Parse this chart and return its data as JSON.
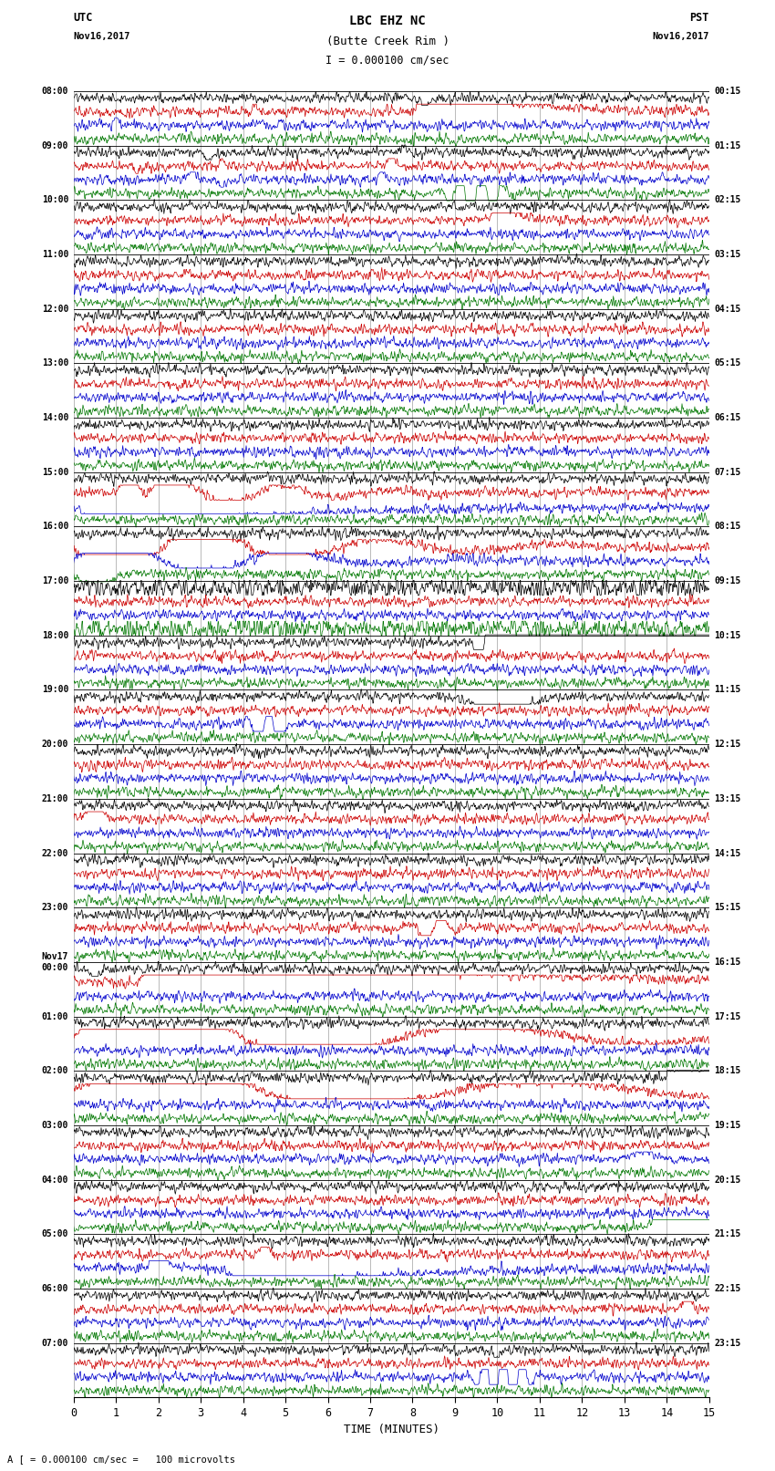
{
  "title_line1": "LBC EHZ NC",
  "title_line2": "(Butte Creek Rim )",
  "scale_label": "I = 0.000100 cm/sec",
  "bottom_label": "A [ = 0.000100 cm/sec =   100 microvolts",
  "xlabel": "TIME (MINUTES)",
  "background_color": "#ffffff",
  "trace_colors": [
    "#000000",
    "#cc0000",
    "#0000cc",
    "#007700"
  ],
  "grid_color": "#888888",
  "fig_width": 8.5,
  "fig_height": 16.13,
  "dpi": 100,
  "utc_times": [
    "08:00",
    "09:00",
    "10:00",
    "11:00",
    "12:00",
    "13:00",
    "14:00",
    "15:00",
    "16:00",
    "17:00",
    "18:00",
    "19:00",
    "20:00",
    "21:00",
    "22:00",
    "23:00",
    "Nov17\n00:00",
    "01:00",
    "02:00",
    "03:00",
    "04:00",
    "05:00",
    "06:00",
    "07:00"
  ],
  "pst_times": [
    "00:15",
    "01:15",
    "02:15",
    "03:15",
    "04:15",
    "05:15",
    "06:15",
    "07:15",
    "08:15",
    "09:15",
    "10:15",
    "11:15",
    "12:15",
    "13:15",
    "14:15",
    "15:15",
    "16:15",
    "17:15",
    "18:15",
    "19:15",
    "20:15",
    "21:15",
    "22:15",
    "23:15"
  ],
  "n_hours": 24,
  "xmin": 0,
  "xmax": 15,
  "xticks": [
    0,
    1,
    2,
    3,
    4,
    5,
    6,
    7,
    8,
    9,
    10,
    11,
    12,
    13,
    14,
    15
  ]
}
